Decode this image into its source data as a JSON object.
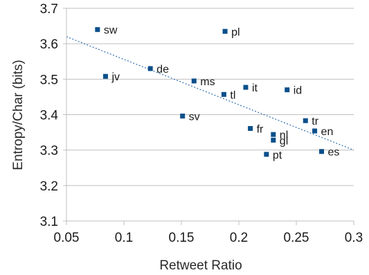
{
  "chart_data": {
    "type": "scatter",
    "title": "",
    "xlabel": "Retweet Ratio",
    "ylabel": "Entropy/Char (bits)",
    "xlim": [
      0.05,
      0.3
    ],
    "ylim": [
      3.1,
      3.7
    ],
    "xticks": [
      "0.05",
      "0.1",
      "0.15",
      "0.2",
      "0.25",
      "0.3"
    ],
    "yticks": [
      "3.1",
      "3.2",
      "3.3",
      "3.4",
      "3.5",
      "3.6",
      "3.7"
    ],
    "xtick_values": [
      0.05,
      0.1,
      0.15,
      0.2,
      0.25,
      0.3
    ],
    "ytick_values": [
      3.1,
      3.2,
      3.3,
      3.4,
      3.5,
      3.6,
      3.7
    ],
    "grid": "horizontal",
    "marker_color": "#0b4f8a",
    "trendline": {
      "style": "dotted",
      "color": "#2f6db3",
      "x": [
        0.05,
        0.3
      ],
      "y": [
        3.62,
        3.3
      ]
    },
    "points": [
      {
        "label": "sw",
        "x": 0.077,
        "y": 3.64
      },
      {
        "label": "pl",
        "x": 0.188,
        "y": 3.635
      },
      {
        "label": "jv",
        "x": 0.084,
        "y": 3.508
      },
      {
        "label": "de",
        "x": 0.123,
        "y": 3.53
      },
      {
        "label": "ms",
        "x": 0.161,
        "y": 3.495
      },
      {
        "label": "it",
        "x": 0.206,
        "y": 3.477
      },
      {
        "label": "id",
        "x": 0.242,
        "y": 3.47
      },
      {
        "label": "tl",
        "x": 0.187,
        "y": 3.457
      },
      {
        "label": "sv",
        "x": 0.151,
        "y": 3.396
      },
      {
        "label": "tr",
        "x": 0.258,
        "y": 3.383
      },
      {
        "label": "fr",
        "x": 0.21,
        "y": 3.361
      },
      {
        "label": "en",
        "x": 0.266,
        "y": 3.354
      },
      {
        "label": "nl",
        "x": 0.23,
        "y": 3.344
      },
      {
        "label": "gl",
        "x": 0.23,
        "y": 3.328
      },
      {
        "label": "es",
        "x": 0.272,
        "y": 3.296
      },
      {
        "label": "pt",
        "x": 0.224,
        "y": 3.288
      }
    ]
  }
}
